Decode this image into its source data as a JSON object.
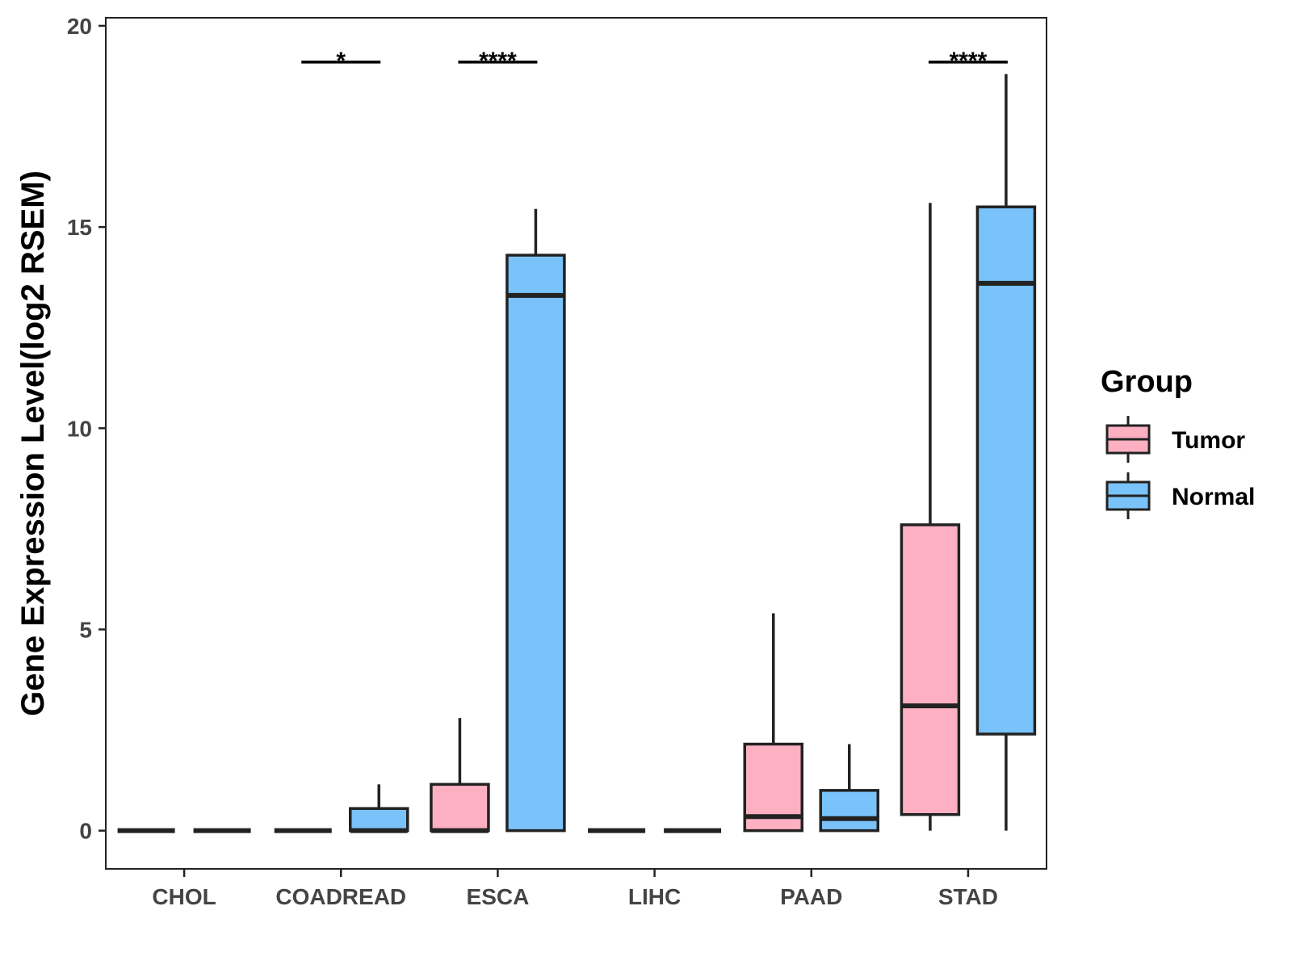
{
  "chart_data": {
    "type": "boxplot",
    "ylabel": "Gene Expression Level(log2 RSEM)",
    "xlabel": "",
    "ylim": [
      -0.95,
      20.2
    ],
    "yticks": [
      0,
      5,
      10,
      15,
      20
    ],
    "grid": false,
    "legend_position": "right",
    "categories": [
      "CHOL",
      "COADREAD",
      "ESCA",
      "LIHC",
      "PAAD",
      "STAD"
    ],
    "legend": {
      "title": "Group",
      "entries": [
        {
          "name": "Tumor",
          "color": "#FCB0C2"
        },
        {
          "name": "Normal",
          "color": "#79C2FA"
        }
      ]
    },
    "series": [
      {
        "name": "Tumor",
        "color": "#FCB0C2",
        "boxes": [
          {
            "category": "CHOL",
            "min": 0,
            "q1": 0,
            "median": 0,
            "q3": 0,
            "max": 0
          },
          {
            "category": "COADREAD",
            "min": 0,
            "q1": 0,
            "median": 0,
            "q3": 0,
            "max": 0
          },
          {
            "category": "ESCA",
            "min": 0,
            "q1": 0,
            "median": 0,
            "q3": 1.15,
            "max": 2.8
          },
          {
            "category": "LIHC",
            "min": 0,
            "q1": 0,
            "median": 0,
            "q3": 0,
            "max": 0
          },
          {
            "category": "PAAD",
            "min": 0,
            "q1": 0,
            "median": 0.35,
            "q3": 2.15,
            "max": 5.4
          },
          {
            "category": "STAD",
            "min": 0,
            "q1": 0.4,
            "median": 3.1,
            "q3": 7.6,
            "max": 15.6
          }
        ]
      },
      {
        "name": "Normal",
        "color": "#79C2FA",
        "boxes": [
          {
            "category": "CHOL",
            "min": 0,
            "q1": 0,
            "median": 0,
            "q3": 0,
            "max": 0
          },
          {
            "category": "COADREAD",
            "min": 0,
            "q1": 0,
            "median": 0,
            "q3": 0.55,
            "max": 1.15
          },
          {
            "category": "ESCA",
            "min": 0,
            "q1": 0,
            "median": 13.3,
            "q3": 14.3,
            "max": 15.45
          },
          {
            "category": "LIHC",
            "min": 0,
            "q1": 0,
            "median": 0,
            "q3": 0,
            "max": 0
          },
          {
            "category": "PAAD",
            "min": 0,
            "q1": 0,
            "median": 0.3,
            "q3": 1.0,
            "max": 2.15
          },
          {
            "category": "STAD",
            "min": 0,
            "q1": 2.4,
            "median": 13.6,
            "q3": 15.5,
            "max": 18.8
          }
        ]
      }
    ],
    "significance": [
      {
        "category": "COADREAD",
        "label": "*",
        "y": 19.1
      },
      {
        "category": "ESCA",
        "label": "****",
        "y": 19.1
      },
      {
        "category": "STAD",
        "label": "****",
        "y": 19.1
      }
    ]
  }
}
